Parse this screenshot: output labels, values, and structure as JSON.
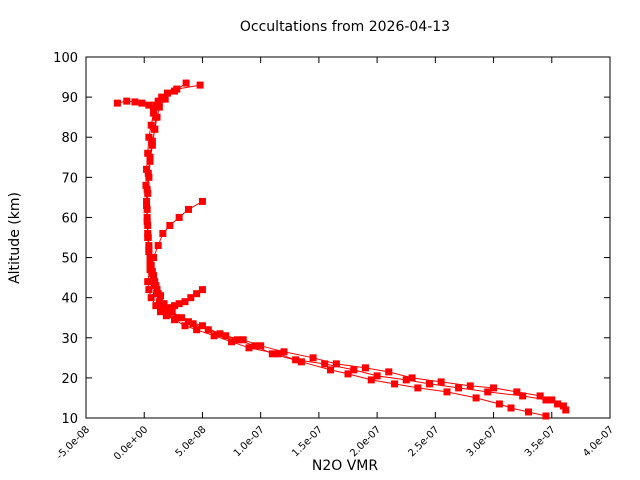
{
  "chart_data": {
    "type": "line",
    "title": "Occultations from 2026-04-13",
    "xlabel": "N2O VMR",
    "ylabel": "Altitude (km)",
    "xlim": [
      -5e-08,
      4e-07
    ],
    "ylim": [
      10,
      100
    ],
    "xticks": [
      "-5.0e-08",
      "0.0e+00",
      "5.0e-08",
      "1.0e-07",
      "1.5e-07",
      "2.0e-07",
      "2.5e-07",
      "3.0e-07",
      "3.5e-07",
      "4.0e-07"
    ],
    "xtick_values": [
      -5e-08,
      0,
      5e-08,
      1e-07,
      1.5e-07,
      2e-07,
      2.5e-07,
      3e-07,
      3.5e-07,
      4e-07
    ],
    "yticks": [
      "10",
      "20",
      "30",
      "40",
      "50",
      "60",
      "70",
      "80",
      "90",
      "100"
    ],
    "ytick_values": [
      10,
      20,
      30,
      40,
      50,
      60,
      70,
      80,
      90,
      100
    ],
    "grid": false,
    "color": "#ff0000",
    "marker": "square",
    "series": [
      {
        "x": [
          3.45e-07,
          3.3e-07,
          3.15e-07,
          3.05e-07,
          2.85e-07,
          2.6e-07,
          2.35e-07,
          2.15e-07,
          1.95e-07,
          1.75e-07,
          1.6e-07,
          1.35e-07,
          1.1e-07,
          9.5e-08,
          8e-08,
          6.5e-08,
          5e-08,
          3.8e-08,
          2.8e-08,
          2e-08,
          1.4e-08,
          1.2e-08,
          1e-08,
          8e-09,
          6e-09,
          5e-09,
          4e-09,
          3e-09,
          2.5e-09,
          2e-09,
          1.5e-09,
          2e-09,
          3e-09,
          4e-09,
          6e-09,
          8e-09,
          1e-08,
          1.2e-08,
          1.5e-08,
          2e-08,
          2.8e-08,
          4.8e-08
        ],
        "y": [
          10.5,
          11.5,
          12.5,
          13.5,
          15,
          16.5,
          17.5,
          18.5,
          19.5,
          21,
          22,
          24,
          26,
          28,
          29.5,
          31,
          33,
          34,
          35,
          36,
          38,
          41,
          43,
          45.5,
          48,
          50,
          53,
          56,
          60,
          64,
          68,
          72,
          76,
          80,
          83,
          86,
          88,
          89,
          90,
          91,
          92,
          93
        ]
      },
      {
        "x": [
          3.6e-07,
          3.5e-07,
          3.4e-07,
          3.2e-07,
          3e-07,
          2.8e-07,
          2.55e-07,
          2.3e-07,
          2.1e-07,
          1.9e-07,
          1.65e-07,
          1.45e-07,
          1.2e-07,
          1e-07,
          8.5e-08,
          7e-08,
          5.5e-08,
          4.2e-08,
          3.2e-08,
          2.4e-08,
          1.7e-08,
          1.4e-08,
          1.1e-08,
          9e-09,
          7e-09,
          5e-09,
          4e-09,
          3.5e-09,
          3e-09,
          2.5e-09,
          3e-09,
          4e-09,
          5e-09,
          7e-09,
          9e-09,
          1.1e-08,
          1.3e-08,
          1.8e-08,
          2.6e-08,
          3.6e-08
        ],
        "y": [
          13,
          14.5,
          15.5,
          16.5,
          17.5,
          18,
          19,
          20,
          21.5,
          22.5,
          23.5,
          25,
          26.5,
          28,
          29.5,
          30.5,
          32,
          33.5,
          35,
          36.5,
          38.5,
          40.5,
          42,
          44,
          46.5,
          49,
          52,
          55,
          58,
          62,
          66,
          70,
          74,
          78,
          82,
          85,
          87.5,
          89.5,
          91.5,
          93.5
        ]
      },
      {
        "x": [
          3.62e-07,
          3.55e-07,
          3.45e-07,
          3.25e-07,
          2.95e-07,
          2.7e-07,
          2.45e-07,
          2.25e-07,
          2e-07,
          1.8e-07,
          1.55e-07,
          1.3e-07,
          1.15e-07,
          9e-08,
          7.5e-08,
          6e-08,
          4.5e-08,
          3.5e-08,
          2.6e-08,
          1.9e-08,
          1.6e-08,
          1.3e-08,
          1.05e-08,
          8.5e-09,
          6.5e-09,
          5e-09,
          4e-09,
          3e-09,
          2.5e-09,
          2e-09,
          2.5e-09,
          3.5e-09,
          5e-09,
          7e-09,
          9e-09,
          1e-08,
          8e-09,
          4e-09,
          -2e-09,
          -8e-09,
          -1.5e-08,
          -2.3e-08
        ],
        "y": [
          12,
          13.5,
          14.5,
          15.5,
          16.5,
          17.5,
          18.5,
          19.5,
          20.5,
          22,
          23.5,
          24.5,
          26,
          27.5,
          29,
          30.5,
          32,
          33,
          34.5,
          35.5,
          37,
          39,
          41,
          43,
          46,
          48.5,
          51.5,
          55,
          59,
          63,
          67,
          71,
          75,
          79,
          82,
          85,
          87,
          88,
          88.5,
          88.8,
          89,
          88.5
        ]
      },
      {
        "x": [
          5e-08,
          4.5e-08,
          4e-08,
          3.5e-08,
          3e-08,
          2.6e-08,
          2.2e-08,
          1.8e-08,
          1.4e-08,
          1e-08,
          6e-09,
          4e-09,
          3e-09,
          5e-09,
          8e-09,
          1.2e-08,
          1.6e-08,
          2.2e-08,
          3e-08,
          3.8e-08,
          5e-08
        ],
        "y": [
          42,
          41,
          40,
          39,
          38.5,
          38,
          37.5,
          37,
          36.5,
          38,
          40,
          42,
          44,
          47,
          50,
          53,
          56,
          58,
          60,
          62,
          64
        ]
      }
    ]
  }
}
